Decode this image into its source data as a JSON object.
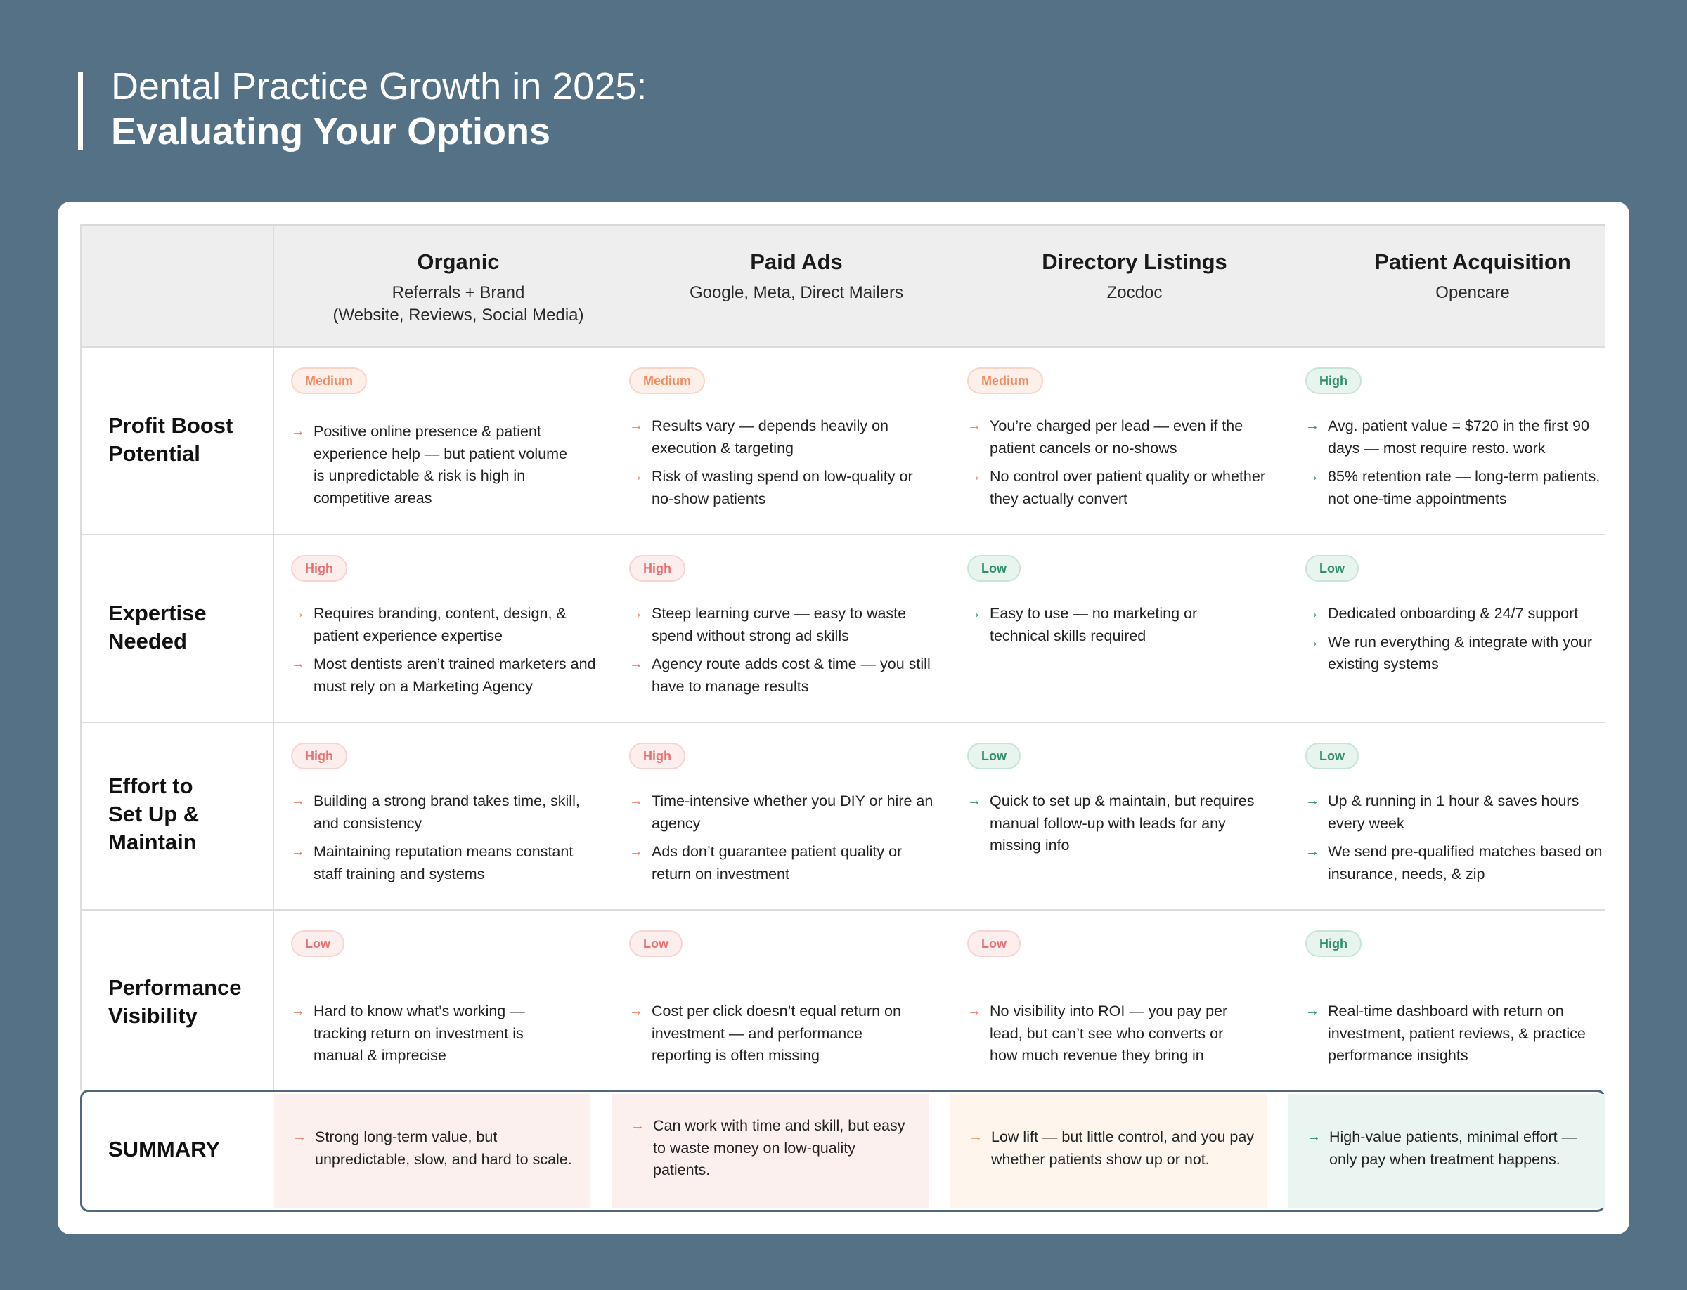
{
  "title": {
    "line1": "Dental Practice Growth in 2025:",
    "line2": "Evaluating Your Options"
  },
  "columns": [
    {
      "name": "Organic",
      "sub1": "Referrals + Brand",
      "sub2": "(Website, Reviews, Social Media)"
    },
    {
      "name": "Paid Ads",
      "sub1": "Google, Meta, Direct Mailers",
      "sub2": ""
    },
    {
      "name": "Directory Listings",
      "sub1": "Zocdoc",
      "sub2": ""
    },
    {
      "name": "Patient Acquisition",
      "sub1": "Opencare",
      "sub2": ""
    }
  ],
  "rows": [
    {
      "label_line1": "Profit Boost",
      "label_line2": "Potential",
      "label_line3": "",
      "cells": [
        {
          "badge": "Medium",
          "bullets": [
            "Positive online presence & patient experience help — but patient volume is unpredictable & risk is high in competitive areas"
          ]
        },
        {
          "badge": "Medium",
          "bullets": [
            "Results vary — depends heavily on execution & targeting",
            "Risk of wasting spend on low-quality or no-show patients"
          ]
        },
        {
          "badge": "Medium",
          "bullets": [
            "You’re charged per lead — even if the patient cancels or no-shows",
            "No control over patient quality or whether they actually convert"
          ]
        },
        {
          "badge": "High",
          "bullets": [
            "Avg. patient value = $720  in the first 90 days — most require resto. work",
            "85% retention rate — long-term patients, not one-time appointments"
          ]
        }
      ]
    },
    {
      "label_line1": "Expertise",
      "label_line2": "Needed",
      "label_line3": "",
      "cells": [
        {
          "badge": "High",
          "bullets": [
            "Requires branding, content, design, & patient experience expertise",
            "Most dentists aren’t trained marketers and must rely on a Marketing Agency"
          ]
        },
        {
          "badge": "High",
          "bullets": [
            "Steep learning curve — easy to waste spend without strong ad skills",
            "Agency route adds cost & time — you still have to manage results"
          ]
        },
        {
          "badge": "Low",
          "bullets": [
            "Easy to use — no marketing or technical skills required"
          ]
        },
        {
          "badge": "Low",
          "bullets": [
            "Dedicated onboarding & 24/7 support",
            "We run everything & integrate with your existing systems"
          ]
        }
      ]
    },
    {
      "label_line1": "Effort to",
      "label_line2": "Set Up &",
      "label_line3": "Maintain",
      "cells": [
        {
          "badge": "High",
          "bullets": [
            "Building a strong brand takes time, skill, and consistency",
            "Maintaining reputation means constant staff training and systems"
          ]
        },
        {
          "badge": "High",
          "bullets": [
            "Time-intensive whether you DIY or hire an agency",
            "Ads don’t guarantee patient quality or return on investment"
          ]
        },
        {
          "badge": "Low",
          "bullets": [
            "Quick to set up & maintain, but requires manual follow-up with leads for any missing info"
          ]
        },
        {
          "badge": "Low",
          "bullets": [
            "Up & running in 1 hour & saves hours every week",
            "We send pre-qualified matches based on insurance, needs, & zip"
          ]
        }
      ]
    },
    {
      "label_line1": "Performance",
      "label_line2": "Visibility",
      "label_line3": "",
      "cells": [
        {
          "badge": "Low",
          "bullets": [
            "Hard to know what’s working — tracking return on investment  is manual & imprecise"
          ]
        },
        {
          "badge": "Low",
          "bullets": [
            "Cost per click doesn’t equal return on investment — and performance reporting is often missing"
          ]
        },
        {
          "badge": "Low",
          "bullets": [
            "No visibility into ROI — you pay per lead, but can’t see who converts or how much revenue they bring in"
          ]
        },
        {
          "badge": "High",
          "bullets": [
            "Real-time dashboard with return on investment, patient reviews, & practice performance insights"
          ]
        }
      ]
    }
  ],
  "summary": {
    "label": "SUMMARY",
    "cells": [
      "Strong long-term value, but unpredictable, slow, and hard to scale.",
      "Can work with time and skill, but easy to waste money on low-quality patients.",
      "Low lift — but little control, and you pay whether patients show up or not.",
      "High-value patients, minimal effort — only pay when treatment happens."
    ]
  },
  "colors": {
    "background": "#557186",
    "card": "#ffffff",
    "header": "#eeeeee",
    "badge_medium": "#ef8a5c",
    "badge_red": "#e57373",
    "badge_green": "#2e8f6b",
    "summary_border": "#4f6880"
  },
  "icons": {
    "bullet": "arrow-right-icon"
  }
}
